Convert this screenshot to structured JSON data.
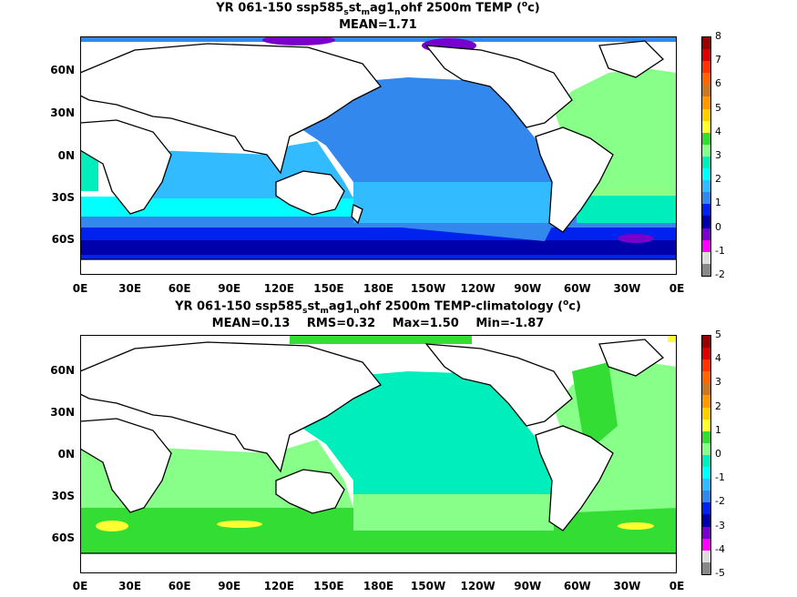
{
  "chart_data": [
    {
      "type": "heatmap",
      "title_parts": [
        "YR 061-150 ssp585",
        "s",
        "st",
        "m",
        "ag1",
        "n",
        "ohf 2500m TEMP (",
        "o",
        "c)"
      ],
      "stats": [
        "MEAN=1.71"
      ],
      "x_ticks": [
        "0E",
        "30E",
        "60E",
        "90E",
        "120E",
        "150E",
        "180E",
        "150W",
        "120W",
        "90W",
        "60W",
        "30W",
        "0E"
      ],
      "y_ticks": [
        "60N",
        "30N",
        "0N",
        "30S",
        "60S"
      ],
      "colorbar": {
        "ticks": [
          "8",
          "7",
          "6",
          "5",
          "4",
          "3",
          "2",
          "1",
          "0",
          "-1",
          "-2"
        ],
        "colors": [
          "#990000",
          "#dd0000",
          "#ff3300",
          "#ff6600",
          "#cc7722",
          "#ff9900",
          "#ffd000",
          "#ffff33",
          "#33dd33",
          "#88ff88",
          "#00eebb",
          "#00ffff",
          "#33bbff",
          "#3388ee",
          "#0022ee",
          "#0000aa",
          "#7700cc",
          "#ff00ff",
          "#dddddd",
          "#888888"
        ]
      }
    },
    {
      "type": "heatmap",
      "title_parts": [
        "YR 061-150 ssp585",
        "s",
        "st",
        "m",
        "ag1",
        "n",
        "ohf 2500m TEMP-climatology (",
        "o",
        "c)"
      ],
      "stats": [
        "MEAN=0.13",
        "RMS=0.32",
        "Max=1.50",
        "Min=-1.87"
      ],
      "x_ticks": [
        "0E",
        "30E",
        "60E",
        "90E",
        "120E",
        "150E",
        "180E",
        "150W",
        "120W",
        "90W",
        "60W",
        "30W",
        "0E"
      ],
      "y_ticks": [
        "60N",
        "30N",
        "0N",
        "30S",
        "60S"
      ],
      "colorbar": {
        "ticks": [
          "5",
          "4",
          "3",
          "2",
          "1",
          "0",
          "-1",
          "-2",
          "-3",
          "-4",
          "-5"
        ],
        "colors": [
          "#990000",
          "#dd0000",
          "#ff3300",
          "#ff6600",
          "#cc7722",
          "#ff9900",
          "#ffd000",
          "#ffff33",
          "#33dd33",
          "#88ff88",
          "#00eebb",
          "#00ffff",
          "#33bbff",
          "#3388ee",
          "#0022ee",
          "#0000aa",
          "#7700cc",
          "#ff00ff",
          "#dddddd",
          "#888888"
        ]
      }
    }
  ]
}
